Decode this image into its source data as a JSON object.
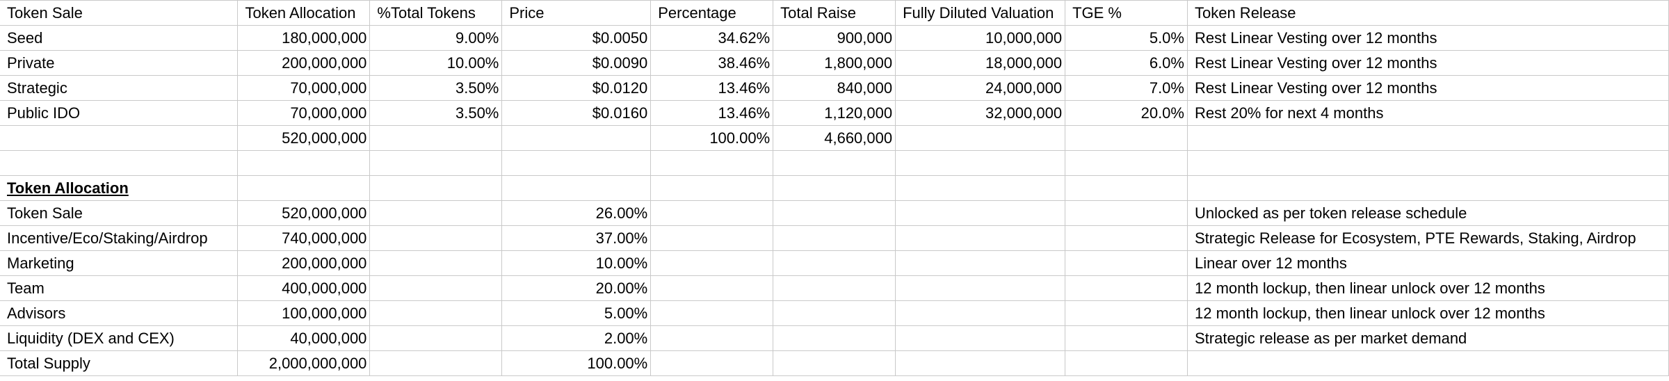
{
  "sale_table": {
    "headers": [
      "Token Sale",
      "Token Allocation",
      "%Total Tokens",
      "Price",
      "Percentage",
      "Total Raise",
      "Fully Diluted Valuation",
      "TGE %",
      "Token Release"
    ],
    "rows": [
      [
        "Seed",
        "180,000,000",
        "9.00%",
        "$0.0050",
        "34.62%",
        "900,000",
        "10,000,000",
        "5.0%",
        "Rest Linear Vesting over 12 months"
      ],
      [
        "Private",
        "200,000,000",
        "10.00%",
        "$0.0090",
        "38.46%",
        "1,800,000",
        "18,000,000",
        "6.0%",
        "Rest Linear Vesting over 12 months"
      ],
      [
        "Strategic",
        "70,000,000",
        "3.50%",
        "$0.0120",
        "13.46%",
        "840,000",
        "24,000,000",
        "7.0%",
        "Rest Linear Vesting over 12 months"
      ],
      [
        "Public IDO",
        "70,000,000",
        "3.50%",
        "$0.0160",
        "13.46%",
        "1,120,000",
        "32,000,000",
        "20.0%",
        "Rest 20% for next 4 months"
      ]
    ],
    "totals": [
      "",
      "520,000,000",
      "",
      "",
      "100.00%",
      "4,660,000",
      "",
      "",
      ""
    ]
  },
  "allocation": {
    "title": "Token Allocation",
    "rows": [
      [
        "Token Sale",
        "520,000,000",
        "26.00%",
        "Unlocked as per token release schedule"
      ],
      [
        "Incentive/Eco/Staking/Airdrop",
        "740,000,000",
        "37.00%",
        "Strategic Release for Ecosystem, PTE Rewards, Staking, Airdrop"
      ],
      [
        "Marketing",
        "200,000,000",
        "10.00%",
        "Linear over 12 months"
      ],
      [
        "Team",
        "400,000,000",
        "20.00%",
        "12 month lockup, then linear unlock over 12 months"
      ],
      [
        "Advisors",
        "100,000,000",
        "5.00%",
        "12 month lockup, then linear unlock over 12 months"
      ],
      [
        "Liquidity (DEX and CEX)",
        "40,000,000",
        "2.00%",
        "Strategic release as per market demand"
      ],
      [
        "Total Supply",
        "2,000,000,000",
        "100.00%",
        ""
      ]
    ]
  }
}
